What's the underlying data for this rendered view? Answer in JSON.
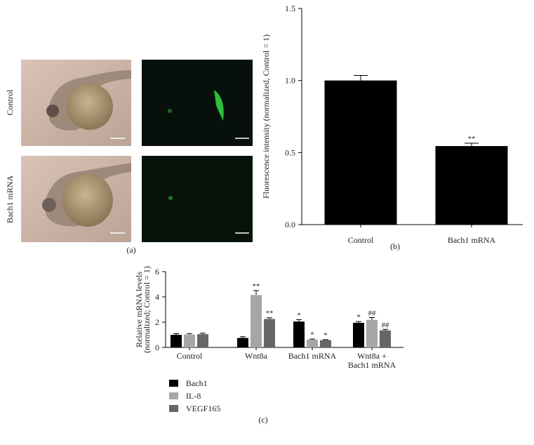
{
  "panel_a": {
    "row_labels": [
      "Control",
      "Bach1 mRNA"
    ],
    "caption": "(a)"
  },
  "chart_data": [
    {
      "type": "bar",
      "caption": "(b)",
      "ylabel": [
        "Fluorescence intensity (normalized, Control = 1)"
      ],
      "categories": [
        "Control",
        "Bach1 mRNA"
      ],
      "series": [
        {
          "name": null,
          "color": "#000000",
          "values": [
            1.0,
            0.545
          ],
          "errors": [
            0.035,
            0.02
          ],
          "annotations": [
            null,
            "**"
          ]
        }
      ],
      "ylim": [
        0,
        1.5
      ],
      "yticks": [
        {
          "value": 0,
          "label": "0.0"
        },
        0.5,
        {
          "value": 1,
          "label": "1.0"
        },
        1.5
      ],
      "legend": false
    },
    {
      "type": "grouped-bar",
      "caption": "(c)",
      "ylabel": [
        "Relative mRNA levels",
        "(normalized; Control = 1)"
      ],
      "categories": [
        "Control",
        "Wnt8a",
        "Bach1 mRNA",
        "Wnt8a +\nBach1 mRNA"
      ],
      "series": [
        {
          "name": "Bach1",
          "color": "#000000",
          "values": [
            1.0,
            0.75,
            2.05,
            1.95
          ],
          "errors": [
            0.08,
            0.1,
            0.15,
            0.1
          ],
          "annotations": [
            null,
            null,
            "*",
            "*"
          ]
        },
        {
          "name": "IL-8",
          "color": "#a6a6a6",
          "values": [
            1.02,
            4.15,
            0.62,
            2.18
          ],
          "errors": [
            0.08,
            0.35,
            0.05,
            0.18
          ],
          "annotations": [
            null,
            "**",
            "*",
            "##"
          ]
        },
        {
          "name": "VEGF165",
          "color": "#666666",
          "values": [
            1.05,
            2.25,
            0.58,
            1.35
          ],
          "errors": [
            0.08,
            0.1,
            0.04,
            0.08
          ],
          "annotations": [
            null,
            "**",
            "*",
            "##"
          ]
        }
      ],
      "ylim": [
        0,
        6
      ],
      "yticks": [
        0,
        2,
        4,
        6
      ],
      "legend": "below-left"
    }
  ]
}
